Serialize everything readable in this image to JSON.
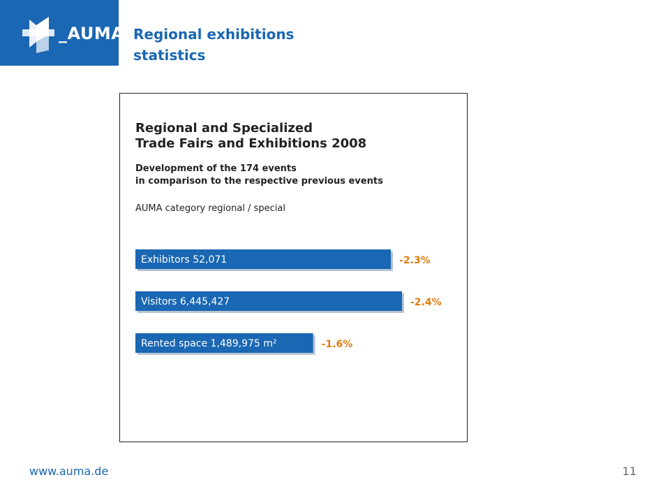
{
  "logo": {
    "icon": "auma-logo-icon",
    "text": "_AUMA"
  },
  "slide": {
    "title": "Regional exhibitions statistics"
  },
  "chart_data": {
    "type": "bar",
    "orientation": "horizontal",
    "title_line1": "Regional and Specialized",
    "title_line2": "Trade Fairs and Exhibitions 2008",
    "subtitle_line1": "Development of the 174 events",
    "subtitle_line2": "in comparison to the respective previous events",
    "category_note": "AUMA category regional / special",
    "categories": [
      "Exhibitors 52,071",
      "Visitors 6,445,427",
      "Rented space 1,489,975 m²"
    ],
    "values": [
      -2.3,
      -2.4,
      -1.6
    ],
    "value_labels": [
      "-2.3%",
      "-2.4%",
      "-1.6%"
    ],
    "colors": {
      "bar": "#1a67b3",
      "shadow": "#b8c4d2",
      "value_label": "#e07d10"
    },
    "grid": false
  },
  "footer": {
    "url": "www.auma.de",
    "page": "11"
  }
}
